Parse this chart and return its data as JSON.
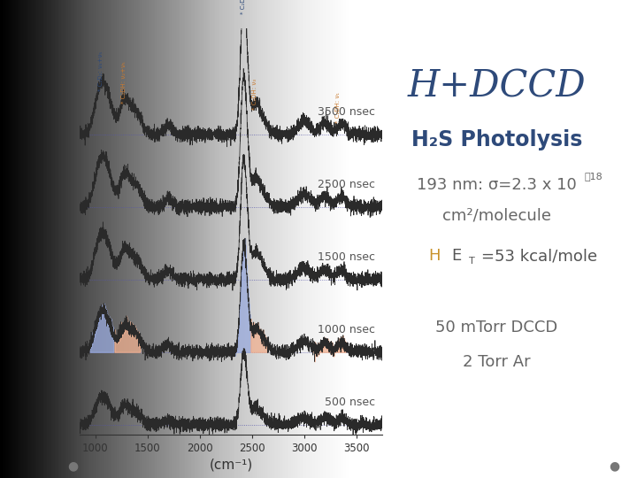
{
  "title": "H+DCCD",
  "title_color": "#2E4A7A",
  "title_fontsize": 30,
  "subtitle": "H₂S Photolysis",
  "subtitle_color": "#2E4A7A",
  "subtitle_fontsize": 17,
  "line1a": "193 nm: σ=2.3 x 10",
  "line1_exp": "-18",
  "line1b": "cm²/molecule",
  "line1_color": "#666666",
  "line1_fontsize": 13,
  "line2_H_color": "#C8922A",
  "line2_color": "#555555",
  "line2_fontsize": 13,
  "line3": "50 mTorr DCCD",
  "line3_color": "#666666",
  "line3_fontsize": 13,
  "line4": "2 Torr Ar",
  "line4_color": "#666666",
  "line4_fontsize": 13,
  "nsec_color": "#555555",
  "nsec_fontsize": 9,
  "xlabel": "(cm⁻¹)",
  "xlabel_color": "#333333",
  "xlabel_fontsize": 11,
  "xtick_labels": [
    "1000",
    "1500",
    "2000",
    "2500",
    "3000",
    "3500"
  ],
  "spectrum_color": "#2A2A2A",
  "baseline_color": "#5555AA",
  "fill_blue_color": "#99AADD",
  "fill_orange_color": "#F0B090",
  "annotation_blue_color": "#2E4A7A",
  "annotation_orange_color": "#C87A30",
  "dot_color": "#777777"
}
